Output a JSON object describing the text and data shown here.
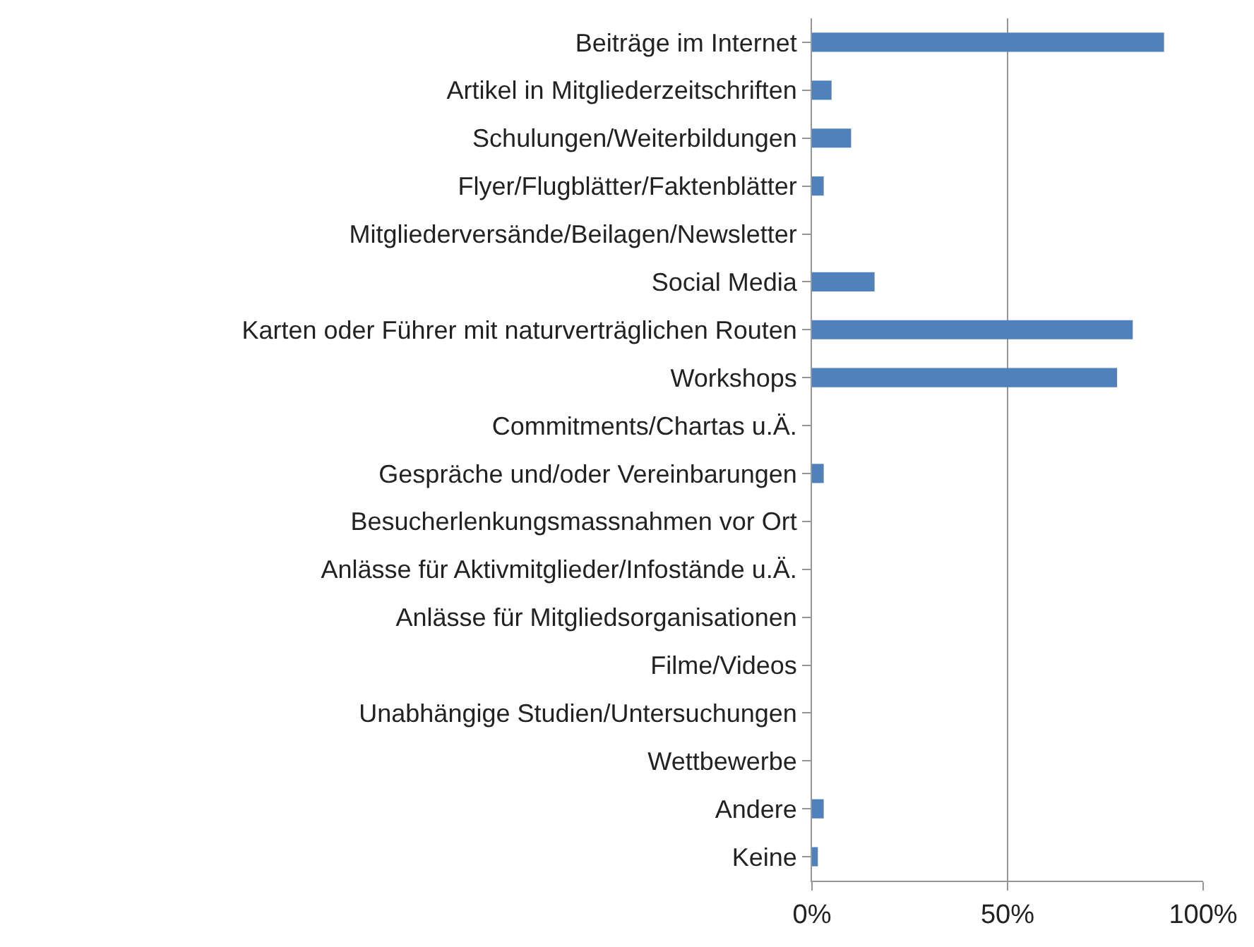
{
  "chart_data": {
    "type": "bar",
    "orientation": "horizontal",
    "categories": [
      "Beiträge im Internet",
      "Artikel in Mitgliederzeitschriften",
      "Schulungen/Weiterbildungen",
      "Flyer/Flugblätter/Faktenblätter",
      "Mitgliederversände/Beilagen/Newsletter",
      "Social Media",
      "Karten oder Führer mit naturverträglichen Routen",
      "Workshops",
      "Commitments/Chartas u.Ä.",
      "Gespräche und/oder Vereinbarungen",
      "Besucherlenkungsmassnahmen vor Ort",
      "Anlässe für Aktivmitglieder/Infostände u.Ä.",
      "Anlässe für Mitgliedsorganisationen",
      "Filme/Videos",
      "Unabhängige Studien/Untersuchungen",
      "Wettbewerbe",
      "Andere",
      "Keine"
    ],
    "values": [
      90,
      5,
      10,
      3,
      0,
      16,
      82,
      78,
      0,
      3,
      0,
      0,
      0,
      0,
      0,
      0,
      3,
      1.5
    ],
    "color": "#4f81bd",
    "xlim": [
      0,
      100
    ],
    "xticks": [
      {
        "value": 0,
        "label": "0%"
      },
      {
        "value": 50,
        "label": "50%"
      },
      {
        "value": 100,
        "label": "100%"
      }
    ],
    "grid": "x"
  }
}
